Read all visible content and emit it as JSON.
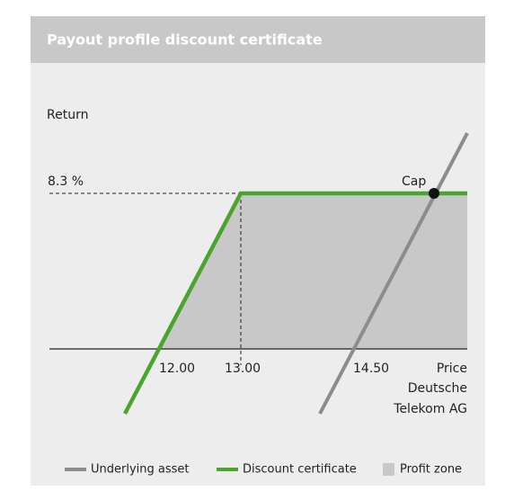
{
  "header": {
    "title": "Payout profile discount certificate"
  },
  "diagram": {
    "y_axis_label": "Return",
    "cap_return_label": "8.3 %",
    "cap_label": "Cap",
    "x_labels": [
      "12.00",
      "13.00",
      "14.50"
    ],
    "x_axis_label": [
      "Price",
      "Deutsche",
      "Telekom AG"
    ]
  },
  "legend": [
    "Underlying asset",
    "Discount certificate",
    "Profit zone"
  ]
}
